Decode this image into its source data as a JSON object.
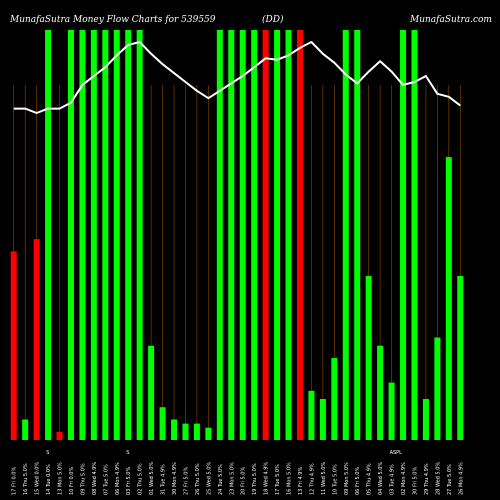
{
  "header": {
    "title": "MunafaSutra Money Flow Charts for 539559",
    "symbol": "(DD)",
    "site": "MunafaSutra.com"
  },
  "colors": {
    "background": "#000000",
    "up": "#00ff00",
    "down": "#ff0000",
    "line": "#ffffff",
    "grid": "#8a4b00"
  },
  "chart_data": {
    "type": "bar",
    "title": "MunafaSutra Money Flow Charts for 539559",
    "categories": [
      "17 Fri 0.0%",
      "16 Thu 5.0%",
      "15 Wed 0.0%",
      "14 Tue 0.0%",
      "13 Mon 5.0%",
      "10 Fri 0.0%",
      "09 Thu 5.0%",
      "08 Wed 4.9%",
      "07 Tue 5.0%",
      "06 Mon 4.9%",
      "03 Fri 5.0%",
      "02 Thu 5.0%",
      "01 Wed 5.0%",
      "31 Tue 4.9%",
      "30 Mon 4.9%",
      "27 Fri 5.0%",
      "26 Thu 5.0%",
      "25 Wed 5.0%",
      "24 Tue 5.0%",
      "23 Mon 5.0%",
      "20 Fri 5.0%",
      "19 Thu 5.0%",
      "18 Wed 4.9%",
      "17 Tue 5.0%",
      "16 Mon 5.0%",
      "13 Fri 4.9%",
      "12 Thu 4.9%",
      "11 Wed 5.0%",
      "10 Tue 5.0%",
      "09 Mon 5.0%",
      "06 Fri 5.0%",
      "05 Thu 4.9%",
      "04 Wed 5.0%",
      "03 Tue 4.9%",
      "02 Mon 4.9%",
      "30 Fri 5.0%",
      "29 Thu 4.9%",
      "28 Wed 5.0%",
      "27 Tue 5.0%",
      "26 Mon 4.9%"
    ],
    "bars": [
      {
        "value": 0.46,
        "color": "red"
      },
      {
        "value": 0.05,
        "color": "green"
      },
      {
        "value": 0.49,
        "color": "red"
      },
      {
        "value": 1.0,
        "color": "green"
      },
      {
        "value": 0.02,
        "color": "red"
      },
      {
        "value": 1.0,
        "color": "green"
      },
      {
        "value": 1.0,
        "color": "green"
      },
      {
        "value": 1.0,
        "color": "green"
      },
      {
        "value": 1.0,
        "color": "green"
      },
      {
        "value": 1.0,
        "color": "green"
      },
      {
        "value": 1.0,
        "color": "green"
      },
      {
        "value": 1.0,
        "color": "green"
      },
      {
        "value": 0.23,
        "color": "green"
      },
      {
        "value": 0.08,
        "color": "green"
      },
      {
        "value": 0.05,
        "color": "green"
      },
      {
        "value": 0.04,
        "color": "green"
      },
      {
        "value": 0.04,
        "color": "green"
      },
      {
        "value": 0.03,
        "color": "green"
      },
      {
        "value": 1.0,
        "color": "green"
      },
      {
        "value": 1.0,
        "color": "green"
      },
      {
        "value": 1.0,
        "color": "green"
      },
      {
        "value": 1.0,
        "color": "green"
      },
      {
        "value": 1.0,
        "color": "red"
      },
      {
        "value": 1.0,
        "color": "green"
      },
      {
        "value": 1.0,
        "color": "green"
      },
      {
        "value": 1.0,
        "color": "red"
      },
      {
        "value": 0.12,
        "color": "green"
      },
      {
        "value": 0.1,
        "color": "green"
      },
      {
        "value": 0.2,
        "color": "green"
      },
      {
        "value": 1.0,
        "color": "green"
      },
      {
        "value": 1.0,
        "color": "green"
      },
      {
        "value": 0.4,
        "color": "green"
      },
      {
        "value": 0.23,
        "color": "green"
      },
      {
        "value": 0.14,
        "color": "green"
      },
      {
        "value": 1.0,
        "color": "green"
      },
      {
        "value": 1.0,
        "color": "green"
      },
      {
        "value": 0.1,
        "color": "green"
      },
      {
        "value": 0.25,
        "color": "green"
      },
      {
        "value": 0.69,
        "color": "green"
      },
      {
        "value": 0.4,
        "color": "green"
      }
    ],
    "line": [
      0.55,
      0.55,
      0.52,
      0.55,
      0.55,
      0.59,
      0.71,
      0.77,
      0.83,
      0.91,
      0.98,
      1.0,
      0.92,
      0.85,
      0.79,
      0.73,
      0.67,
      0.62,
      0.67,
      0.72,
      0.77,
      0.83,
      0.89,
      0.88,
      0.91,
      0.96,
      1.0,
      0.92,
      0.86,
      0.78,
      0.72,
      0.8,
      0.87,
      0.8,
      0.71,
      0.73,
      0.77,
      0.65,
      0.63,
      0.57
    ],
    "line_range": [
      0,
      1
    ],
    "bar_range": [
      0,
      1
    ],
    "grid": "vertical",
    "xtick_labels_visible": false,
    "annotations": [
      "S",
      "S",
      "ASPL"
    ]
  }
}
